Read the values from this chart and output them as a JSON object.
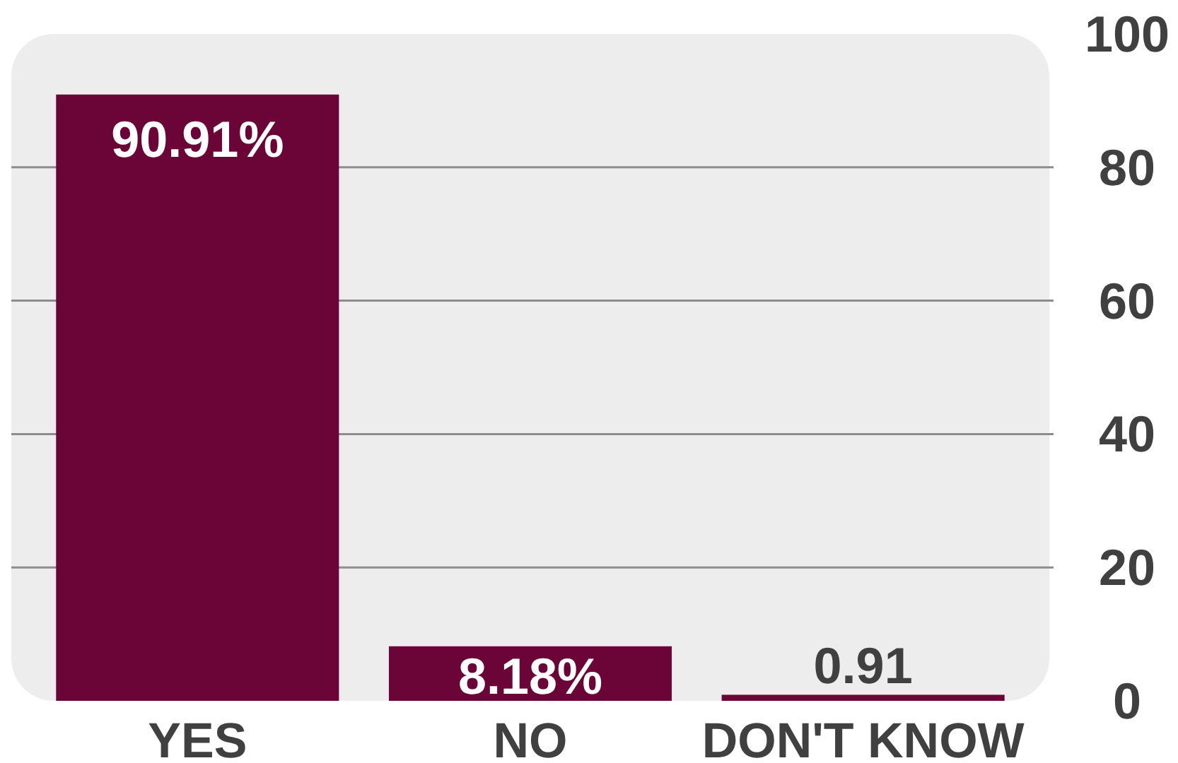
{
  "chart_data": {
    "type": "bar",
    "categories": [
      "YES",
      "NO",
      "DON'T KNOW"
    ],
    "values": [
      90.91,
      8.18,
      0.91
    ],
    "color": "#6b0538",
    "value_labels": [
      "90.91%",
      "8.18%",
      "0.91"
    ],
    "ylim": [
      0,
      100
    ],
    "yticks": [
      0,
      20,
      40,
      60,
      80,
      100
    ],
    "grid": "y"
  }
}
